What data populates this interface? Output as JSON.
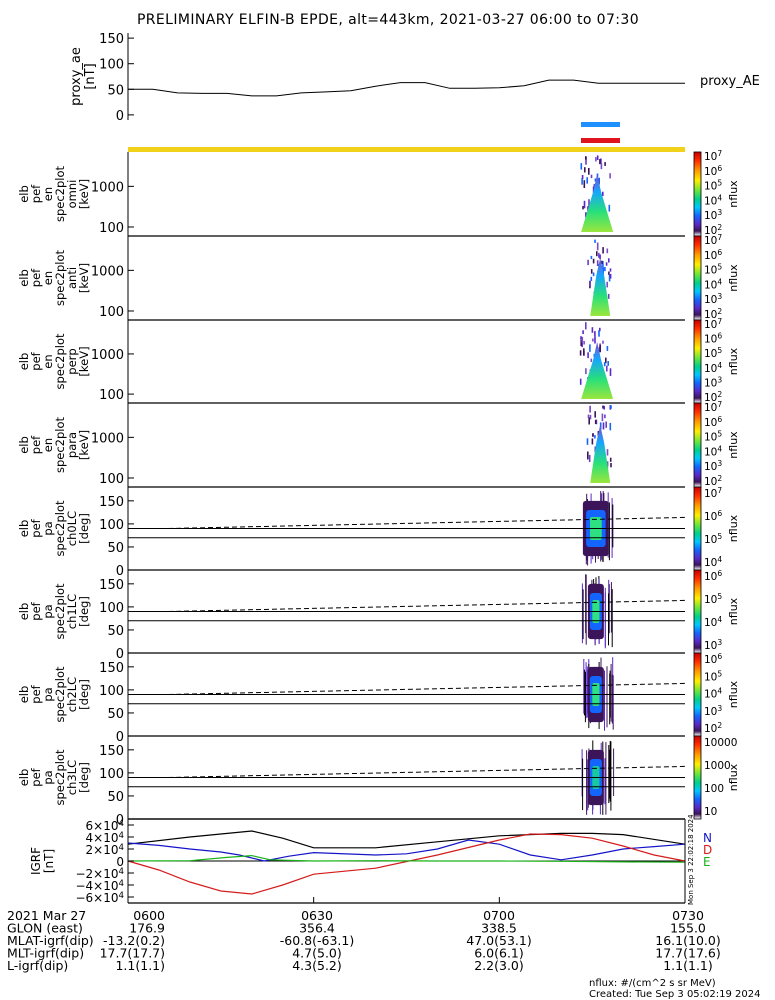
{
  "title": "PRELIMINARY ELFIN-B EPDE, alt=443km, 2021-03-27 06:00 to 07:30",
  "colors": {
    "orbit_bar": "#f2d11a",
    "blue_bar": "#1e90ff",
    "red_bar": "#e0141e",
    "axis": "#000000",
    "gsm_x": "#000000",
    "gsm_y": "#1515c8",
    "gsm_z": "#d41c1c",
    "gsm_t": "#18b418"
  },
  "colorbar_labels": {
    "nflux": "nflux"
  },
  "side_labels": {
    "proxy_ae": "proxy_AE",
    "igrf_n": "N",
    "igrf_d": "D",
    "igrf_e": "E",
    "stamp": "Mon Sep  3 22:02:18 2024"
  },
  "ephemeris": {
    "rows": [
      {
        "label": "2021 Mar 27",
        "values": [
          "0600",
          "0630",
          "0700",
          "0730"
        ]
      },
      {
        "label": "GLON (east)",
        "values": [
          "176.9",
          "356.4",
          "338.5",
          "155.0"
        ]
      },
      {
        "label": "MLAT-igrf(dip)",
        "values": [
          "-13.2(0.2)",
          "-60.8(-63.1)",
          "47.0(53.1)",
          "16.1(10.0)"
        ]
      },
      {
        "label": "MLT-igrf(dip)",
        "values": [
          "17.7(17.7)",
          "4.7(5.0)",
          "6.0(6.1)",
          "17.7(17.6)"
        ]
      },
      {
        "label": "L-igrf(dip)",
        "values": [
          "1.1(1.1)",
          "4.3(5.2)",
          "2.2(3.0)",
          "1.1(1.1)"
        ]
      }
    ]
  },
  "footer": {
    "units": "nflux: #/(cm^2 s sr MeV)",
    "created": "Created: Tue Sep  3 05:02:19 2024"
  },
  "chart_data": [
    {
      "type": "line",
      "name": "proxy_ae",
      "ylabel": [
        "proxy_ae",
        "[nT]"
      ],
      "yticks": [
        0,
        50,
        100,
        150
      ],
      "ylim": [
        -10,
        160
      ],
      "xlim": [
        0,
        90
      ],
      "x": [
        0,
        4,
        8,
        12,
        16,
        20,
        24,
        28,
        32,
        36,
        40,
        44,
        48,
        52,
        56,
        60,
        64,
        68,
        72,
        76,
        80,
        84,
        88,
        90
      ],
      "y": [
        50,
        50,
        43,
        42,
        42,
        37,
        37,
        43,
        45,
        47,
        56,
        63,
        63,
        52,
        52,
        53,
        57,
        68,
        68,
        62,
        62,
        62,
        62,
        62
      ]
    },
    {
      "type": "heatmap",
      "name": "spec_omni",
      "ylabel": [
        "elb",
        "pef",
        "en",
        "spec2plot",
        "omni",
        "[keV]"
      ],
      "yscale": "log",
      "yticks": [
        100,
        1000
      ],
      "colorbar_ticks": [
        "10^7",
        "10^6",
        "10^5",
        "10^4",
        "10^3",
        "10^2"
      ],
      "colorbar_label": "nflux",
      "active_x": [
        73,
        78
      ]
    },
    {
      "type": "heatmap",
      "name": "spec_anti",
      "ylabel": [
        "elb",
        "pef",
        "en",
        "spec2plot",
        "anti",
        "[keV]"
      ],
      "yscale": "log",
      "yticks": [
        100,
        1000
      ],
      "colorbar_ticks": [
        "10^7",
        "10^6",
        "10^5",
        "10^4",
        "10^3",
        "10^2"
      ],
      "colorbar_label": "nflux",
      "active_x": [
        74,
        78
      ]
    },
    {
      "type": "heatmap",
      "name": "spec_perp",
      "ylabel": [
        "elb",
        "pef",
        "en",
        "spec2plot",
        "perp",
        "[keV]"
      ],
      "yscale": "log",
      "yticks": [
        100,
        1000
      ],
      "colorbar_ticks": [
        "10^7",
        "10^6",
        "10^5",
        "10^4",
        "10^3",
        "10^2"
      ],
      "colorbar_label": "nflux",
      "active_x": [
        73,
        78
      ]
    },
    {
      "type": "heatmap",
      "name": "spec_para",
      "ylabel": [
        "elb",
        "pef",
        "en",
        "spec2plot",
        "para",
        "[keV]"
      ],
      "yscale": "log",
      "yticks": [
        100,
        1000
      ],
      "colorbar_ticks": [
        "10^7",
        "10^6",
        "10^5",
        "10^4",
        "10^3",
        "10^2"
      ],
      "colorbar_label": "nflux",
      "active_x": [
        74,
        78
      ]
    },
    {
      "type": "heatmap",
      "name": "pa_ch0",
      "ylabel": [
        "elb",
        "pef",
        "pa",
        "spec2plot",
        "ch0LC",
        "[deg]"
      ],
      "yticks": [
        0,
        50,
        100,
        150
      ],
      "ylim": [
        0,
        180
      ],
      "colorbar_ticks": [
        "10^7",
        "10^6",
        "10^5",
        "10^4"
      ],
      "colorbar_label": "nflux",
      "losscone_solid": [
        90,
        70
      ],
      "losscone_dashed": [
        90,
        114
      ]
    },
    {
      "type": "heatmap",
      "name": "pa_ch1",
      "ylabel": [
        "elb",
        "pef",
        "pa",
        "spec2plot",
        "ch1LC",
        "[deg]"
      ],
      "yticks": [
        0,
        50,
        100,
        150
      ],
      "ylim": [
        0,
        180
      ],
      "colorbar_ticks": [
        "10^6",
        "10^5",
        "10^4",
        "10^3"
      ],
      "colorbar_label": "nflux",
      "losscone_solid": [
        90,
        70
      ],
      "losscone_dashed": [
        90,
        114
      ]
    },
    {
      "type": "heatmap",
      "name": "pa_ch2",
      "ylabel": [
        "elb",
        "pef",
        "pa",
        "spec2plot",
        "ch2LC",
        "[deg]"
      ],
      "yticks": [
        0,
        50,
        100,
        150
      ],
      "ylim": [
        0,
        180
      ],
      "colorbar_ticks": [
        "10^6",
        "10^5",
        "10^4",
        "10^3",
        "10^2"
      ],
      "colorbar_label": "nflux",
      "losscone_solid": [
        90,
        70
      ],
      "losscone_dashed": [
        90,
        114
      ]
    },
    {
      "type": "heatmap",
      "name": "pa_ch3",
      "ylabel": [
        "elb",
        "pef",
        "pa",
        "spec2plot",
        "ch3LC",
        "[deg]"
      ],
      "yticks": [
        0,
        50,
        100,
        150
      ],
      "ylim": [
        0,
        180
      ],
      "colorbar_ticks": [
        "10000",
        "1000",
        "100",
        "10"
      ],
      "colorbar_label": "nflux",
      "losscone_solid": [
        90,
        70
      ],
      "losscone_dashed": [
        90,
        114
      ]
    },
    {
      "type": "line",
      "name": "igrf",
      "ylabel": [
        "IGRF",
        "[nT]"
      ],
      "yticks": [
        -60000,
        -40000,
        -20000,
        0,
        20000,
        40000,
        60000
      ],
      "ytick_labels": [
        "−6×10^4",
        "−4×10^4",
        "−2×10^4",
        "0",
        "2×10^4",
        "4×10^4",
        "6×10^4"
      ],
      "ylim": [
        -70000,
        70000
      ],
      "xlim": [
        0,
        90
      ],
      "series": [
        {
          "name": "N",
          "x": [
            0,
            10,
            20,
            25,
            30,
            40,
            50,
            60,
            70,
            75,
            80,
            90
          ],
          "y": [
            28000,
            40000,
            50000,
            38000,
            22000,
            22000,
            32000,
            42000,
            46000,
            46000,
            44000,
            28000
          ]
        },
        {
          "name": "D",
          "x": [
            0,
            5,
            10,
            15,
            18,
            22,
            26,
            30,
            40,
            45,
            50,
            55,
            60,
            65,
            70,
            75,
            80,
            85,
            90
          ],
          "y": [
            30000,
            26000,
            20000,
            15000,
            10000,
            0,
            8000,
            14000,
            10000,
            12000,
            20000,
            35000,
            28000,
            10000,
            2000,
            10000,
            20000,
            24000,
            28000
          ]
        },
        {
          "name": "E",
          "x": [
            0,
            5,
            10,
            15,
            20,
            25,
            30,
            40,
            50,
            60,
            65,
            70,
            75,
            80,
            85,
            90
          ],
          "y": [
            0,
            -15000,
            -35000,
            -50000,
            -55000,
            -40000,
            -22000,
            -12000,
            10000,
            35000,
            45000,
            44000,
            38000,
            25000,
            10000,
            0
          ]
        },
        {
          "name": "",
          "x": [
            0,
            10,
            16,
            20,
            23,
            30,
            40,
            50,
            60,
            70,
            80,
            90
          ],
          "y": [
            0,
            500,
            6000,
            9000,
            2000,
            0,
            500,
            0,
            0,
            -500,
            -1500,
            -2000
          ]
        }
      ]
    }
  ]
}
